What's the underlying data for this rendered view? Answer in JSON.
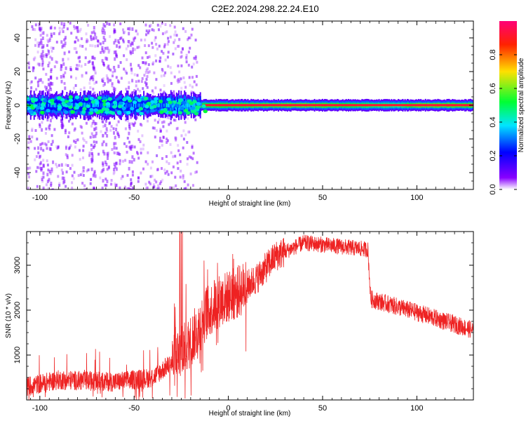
{
  "title": "C2E2.2024.298.22.24.E10",
  "chart_data": [
    {
      "type": "heatmap",
      "xlabel": "Height of straight line (km)",
      "ylabel": "Frequency (Hz)",
      "xlim": [
        -107,
        130
      ],
      "ylim": [
        -50,
        50
      ],
      "xticks": [
        -100,
        -50,
        0,
        50,
        100
      ],
      "yticks": [
        -40,
        -20,
        0,
        20,
        40
      ],
      "x_tick_labels": [
        "-100",
        "-50",
        "0",
        "50",
        "100"
      ],
      "y_tick_labels": [
        "-40",
        "-20",
        "0",
        "20",
        "40"
      ],
      "colorbar": {
        "label": "Normalized spectral amplitude",
        "range": [
          0,
          1
        ],
        "ticks": [
          0.0,
          0.2,
          0.4,
          0.6,
          0.8
        ],
        "tick_labels": [
          "0.0",
          "0.2",
          "0.4",
          "0.6",
          "0.8"
        ],
        "colors": [
          "#ffffff",
          "#7700ff",
          "#0000ff",
          "#00e5ff",
          "#00ff33",
          "#ffe000",
          "#ff2200",
          "#ff0088"
        ]
      },
      "band_center": [
        {
          "x": -107,
          "y": 0
        },
        {
          "x": -60,
          "y": 0
        },
        {
          "x": -15,
          "y": 0
        },
        {
          "x": 130,
          "y": 0
        }
      ],
      "band_intensity": [
        {
          "x": -107,
          "v": 0.35
        },
        {
          "x": -40,
          "v": 0.4
        },
        {
          "x": -15,
          "v": 0.85
        },
        {
          "x": 40,
          "v": 0.95
        },
        {
          "x": 90,
          "v": 0.75
        },
        {
          "x": 100,
          "v": 0.95
        },
        {
          "x": 130,
          "v": 0.9
        }
      ],
      "grid": false
    },
    {
      "type": "line",
      "xlabel": "Height of straight line (km)",
      "ylabel": "SNR (10 * v/v)",
      "xlim": [
        -107,
        130
      ],
      "ylim": [
        0,
        3750
      ],
      "xticks": [
        -100,
        -50,
        0,
        50,
        100
      ],
      "yticks": [
        1000,
        2000,
        3000
      ],
      "x_tick_labels": [
        "-100",
        "-50",
        "0",
        "50",
        "100"
      ],
      "y_tick_labels": [
        "1000",
        "2000",
        "3000"
      ],
      "series": [
        {
          "color": "#ee2222",
          "trend": [
            {
              "x": -107,
              "y": 300
            },
            {
              "x": -90,
              "y": 450
            },
            {
              "x": -60,
              "y": 400
            },
            {
              "x": -40,
              "y": 500
            },
            {
              "x": -28,
              "y": 900
            },
            {
              "x": -20,
              "y": 1300
            },
            {
              "x": -12,
              "y": 1900
            },
            {
              "x": -5,
              "y": 2200
            },
            {
              "x": 5,
              "y": 2400
            },
            {
              "x": 15,
              "y": 2700
            },
            {
              "x": 25,
              "y": 3200
            },
            {
              "x": 40,
              "y": 3500
            },
            {
              "x": 74,
              "y": 3350
            },
            {
              "x": 75.5,
              "y": 2250
            },
            {
              "x": 100,
              "y": 1950
            },
            {
              "x": 130,
              "y": 1550
            }
          ]
        }
      ],
      "grid": false
    }
  ]
}
